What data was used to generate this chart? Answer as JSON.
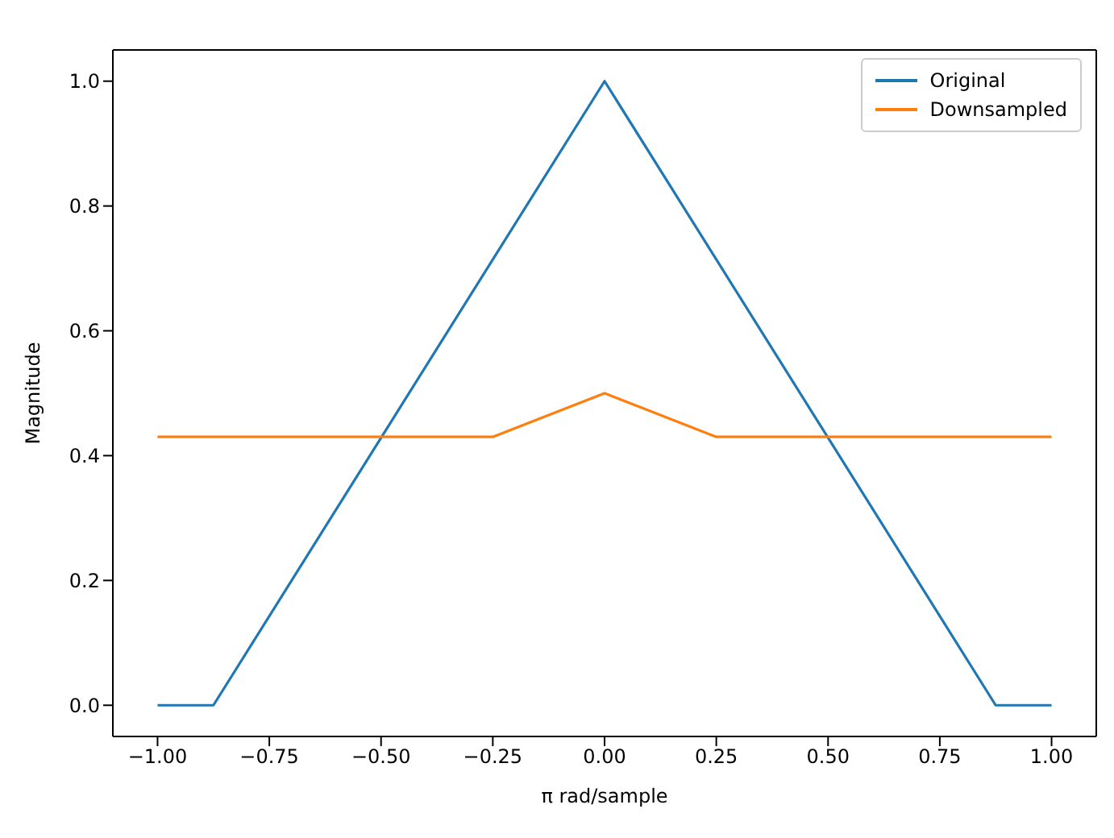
{
  "chart_data": {
    "type": "line",
    "xlabel": "π rad/sample",
    "ylabel": "Magnitude",
    "series": [
      {
        "name": "Original",
        "color": "#1f77b4",
        "x": [
          -1,
          -0.875,
          0,
          0.875,
          1
        ],
        "values": [
          0,
          0,
          1,
          0,
          0
        ]
      },
      {
        "name": "Downsampled",
        "color": "#ff7f0e",
        "x": [
          -1,
          -0.25,
          0,
          0.25,
          1
        ],
        "values": [
          0.43,
          0.43,
          0.5,
          0.43,
          0.43
        ]
      }
    ],
    "xlim": [
      -1.1,
      1.1
    ],
    "xticks": [
      {
        "value": -1,
        "label": "−1.00"
      },
      {
        "value": -0.75,
        "label": "−0.75"
      },
      {
        "value": -0.5,
        "label": "−0.50"
      },
      {
        "value": -0.25,
        "label": "−0.25"
      },
      {
        "value": 0,
        "label": "0.00"
      },
      {
        "value": 0.25,
        "label": "0.25"
      },
      {
        "value": 0.5,
        "label": "0.50"
      },
      {
        "value": 0.75,
        "label": "0.75"
      },
      {
        "value": 1,
        "label": "1.00"
      }
    ],
    "ylim": [
      -0.05,
      1.05
    ],
    "yticks": [
      {
        "value": 0,
        "label": "0.0"
      },
      {
        "value": 0.2,
        "label": "0.2"
      },
      {
        "value": 0.4,
        "label": "0.4"
      },
      {
        "value": 0.6,
        "label": "0.6"
      },
      {
        "value": 0.8,
        "label": "0.8"
      },
      {
        "value": 1,
        "label": "1.0"
      }
    ],
    "legend": "top right",
    "grid": false,
    "marker": "none",
    "line_style": "solid"
  }
}
